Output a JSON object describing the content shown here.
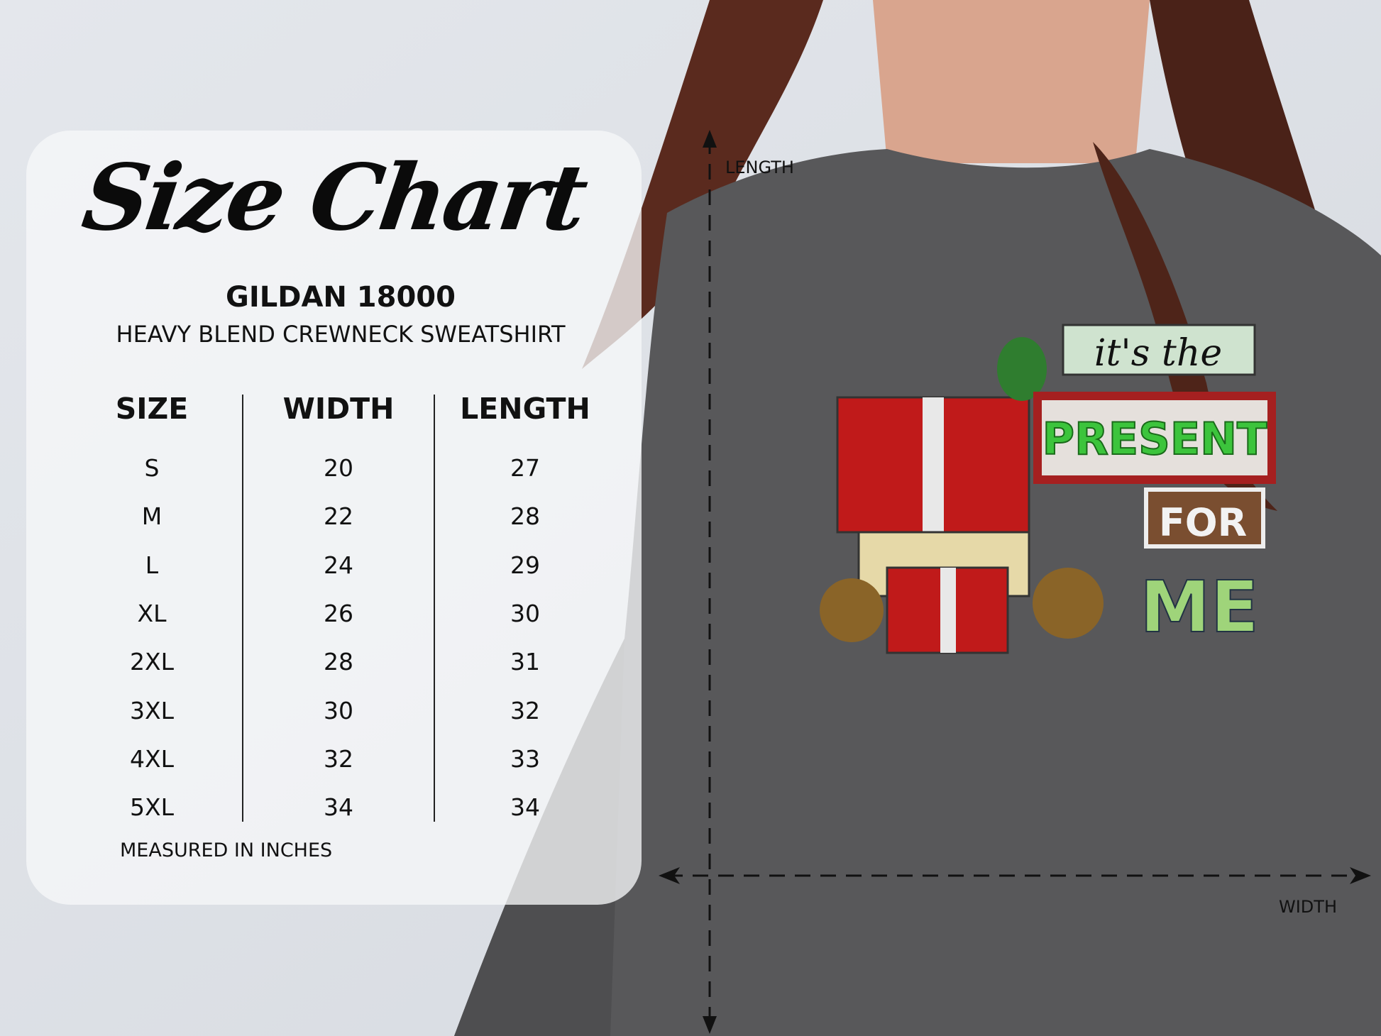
{
  "size_chart": {
    "title": "Size Chart",
    "brand": "GILDAN 18000",
    "product": "HEAVY BLEND CREWNECK SWEATSHIRT",
    "columns": [
      "SIZE",
      "WIDTH",
      "LENGTH"
    ],
    "rows": [
      {
        "size": "S",
        "width": "20",
        "length": "27"
      },
      {
        "size": "M",
        "width": "22",
        "length": "28"
      },
      {
        "size": "L",
        "width": "24",
        "length": "29"
      },
      {
        "size": "XL",
        "width": "26",
        "length": "30"
      },
      {
        "size": "2XL",
        "width": "28",
        "length": "31"
      },
      {
        "size": "3XL",
        "width": "30",
        "length": "32"
      },
      {
        "size": "4XL",
        "width": "32",
        "length": "33"
      },
      {
        "size": "5XL",
        "width": "34",
        "length": "34"
      }
    ],
    "note": "MEASURED IN INCHES"
  },
  "measurements": {
    "length_label": "LENGTH",
    "width_label": "WIDTH"
  },
  "print_design": {
    "line1": "it's the",
    "line2": "PRESENT",
    "line3": "FOR",
    "line4": "ME"
  },
  "colors": {
    "background": "#dfe3e8",
    "shirt": "#58585a",
    "hair": "#5a2a1e",
    "gift_red": "#c01a1a",
    "sign_green": "#3cc43c"
  }
}
